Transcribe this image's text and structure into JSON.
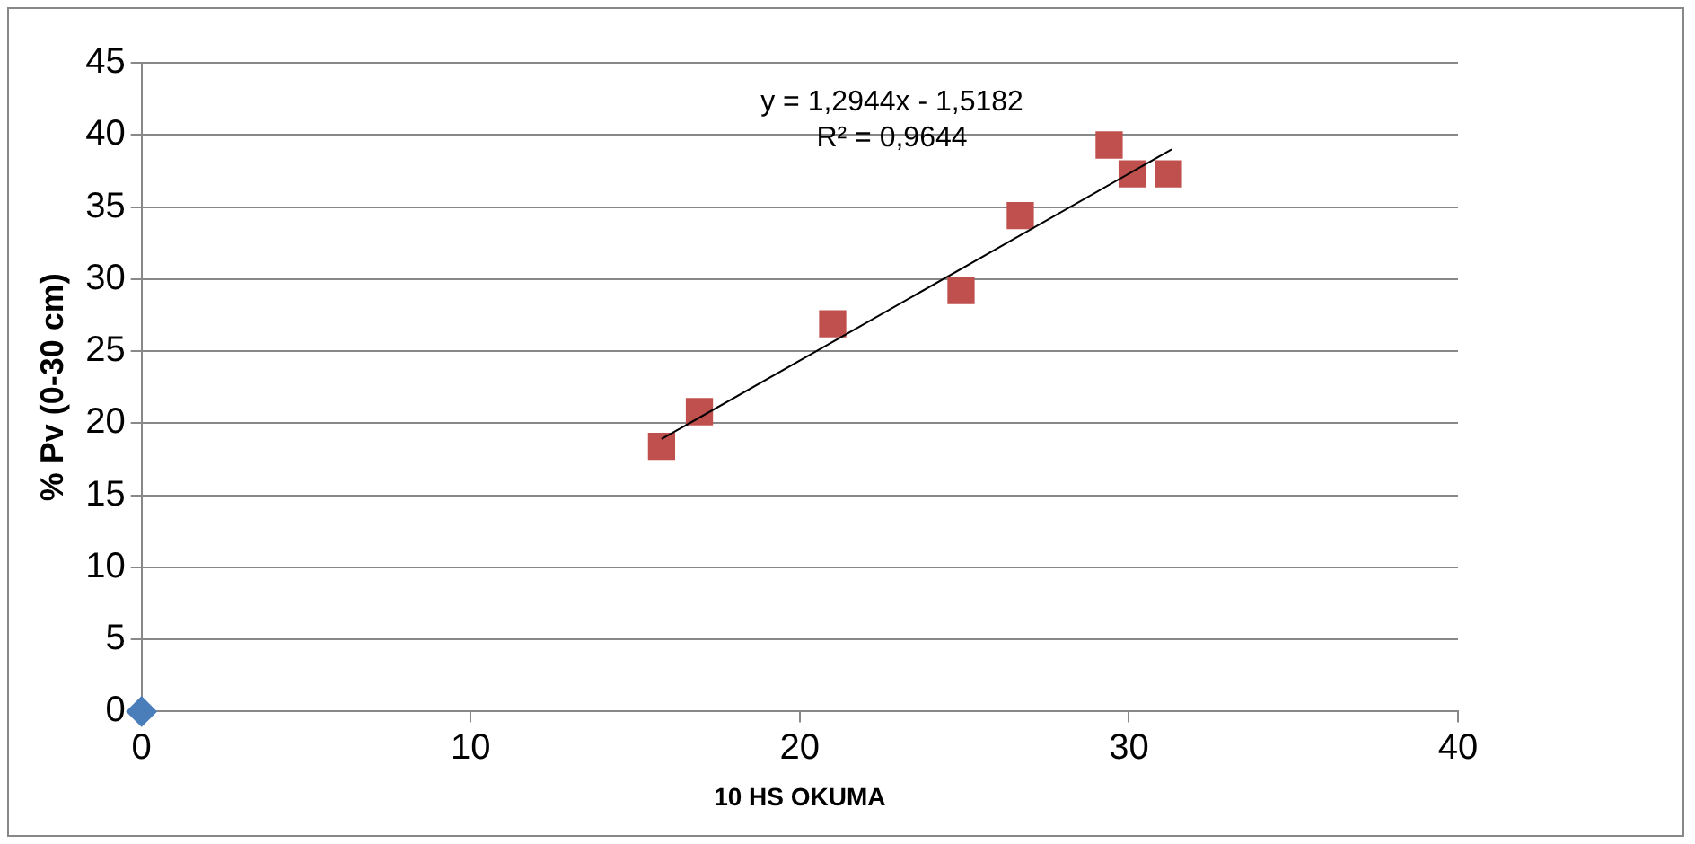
{
  "chart_data": {
    "type": "scatter",
    "xlabel": "10 HS OKUMA",
    "ylabel": "% Pv (0-30 cm)",
    "xlim": [
      0,
      40
    ],
    "xticks": [
      0,
      10,
      20,
      30,
      40
    ],
    "ylim": [
      0,
      45
    ],
    "yticks": [
      0,
      5,
      10,
      15,
      20,
      25,
      30,
      35,
      40,
      45
    ],
    "grid": "y",
    "legend": false,
    "annotations": [
      "y = 1,2944x - 1,5182",
      "R² = 0,9644"
    ],
    "series": [
      {
        "type": "scatter",
        "color": "#4a7ebb",
        "marker": "diamond",
        "x": [
          0
        ],
        "values": [
          0
        ]
      },
      {
        "type": "scatter",
        "color": "#c0504d",
        "marker": "square",
        "x": [
          15.8,
          16.95,
          21.0,
          24.9,
          26.7,
          29.4,
          30.1,
          31.2
        ],
        "values": [
          18.4,
          20.8,
          26.9,
          29.2,
          34.4,
          39.3,
          37.3,
          37.3
        ]
      },
      {
        "type": "line",
        "color": "#000000",
        "marker": "none",
        "x": [
          15.8,
          31.3
        ],
        "values": [
          18.9,
          39.0
        ]
      }
    ]
  }
}
